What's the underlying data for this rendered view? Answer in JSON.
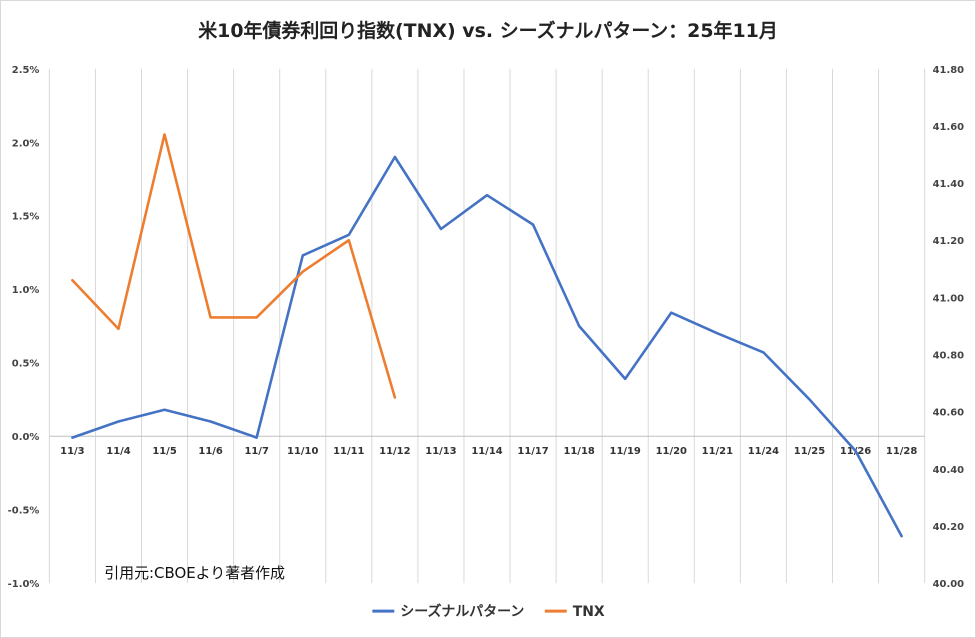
{
  "chart_data": {
    "type": "line",
    "title": "米10年債券利回り指数(TNX) vs. シーズナルパターン：25年11月",
    "categories": [
      "11/3",
      "11/4",
      "11/5",
      "11/6",
      "11/7",
      "11/10",
      "11/11",
      "11/12",
      "11/13",
      "11/14",
      "11/17",
      "11/18",
      "11/19",
      "11/20",
      "11/21",
      "11/24",
      "11/25",
      "11/26",
      "11/28"
    ],
    "series": [
      {
        "name": "シーズナルパターン",
        "axis": "left",
        "color": "#4472c4",
        "values": [
          -0.01,
          0.1,
          0.18,
          0.1,
          -0.01,
          1.23,
          1.37,
          1.9,
          1.41,
          1.64,
          1.44,
          0.75,
          0.39,
          0.84,
          0.7,
          0.57,
          0.25,
          -0.1,
          -0.68
        ]
      },
      {
        "name": "TNX",
        "axis": "right",
        "color": "#ed7d31",
        "values": [
          41.06,
          40.89,
          41.57,
          40.93,
          40.93,
          41.09,
          41.2,
          40.65,
          null,
          null,
          null,
          null,
          null,
          null,
          null,
          null,
          null,
          null,
          null
        ]
      }
    ],
    "y_left": {
      "min": -1.0,
      "max": 2.5,
      "step": 0.5,
      "ticks": [
        "-1.0%",
        "-0.5%",
        "0.0%",
        "0.5%",
        "1.0%",
        "1.5%",
        "2.0%",
        "2.5%"
      ]
    },
    "y_right": {
      "min": 40.0,
      "max": 41.8,
      "step": 0.2,
      "ticks": [
        "40.00",
        "40.20",
        "40.40",
        "40.60",
        "40.80",
        "41.00",
        "41.20",
        "41.40",
        "41.60",
        "41.80"
      ]
    },
    "grid": "vertical",
    "legend": "bottom-center",
    "annotation": "引用元:CBOEより著者作成"
  }
}
